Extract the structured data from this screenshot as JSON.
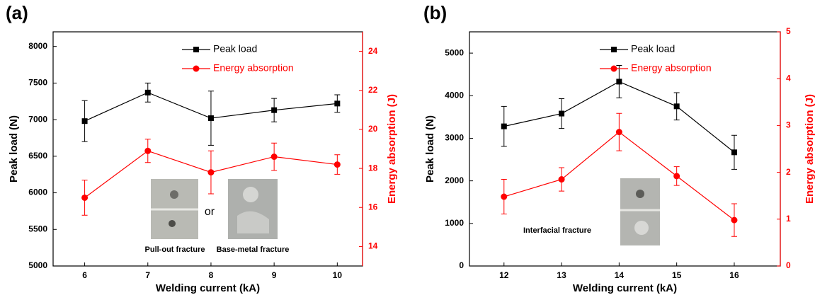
{
  "chart_data": [
    {
      "type": "line",
      "panel_label": "(a)",
      "xlabel": "Welding current (kA)",
      "ylabel": "Peak load (N)",
      "y2label": "Energy absorption (J)",
      "x": [
        6,
        7,
        8,
        9,
        10
      ],
      "xlim": [
        5.5,
        10.4
      ],
      "xticks": [
        6,
        7,
        8,
        9,
        10
      ],
      "ylim": [
        5000,
        8200
      ],
      "yticks": [
        5000,
        5500,
        6000,
        6500,
        7000,
        7500,
        8000
      ],
      "y2lim": [
        13,
        25
      ],
      "y2ticks": [
        14,
        16,
        18,
        20,
        22,
        24
      ],
      "y2color": "#ff0000",
      "legend": "upper right",
      "series": [
        {
          "name": "Peak load",
          "color": "#000000",
          "marker": "square",
          "values": [
            6980,
            7370,
            7020,
            7130,
            7220
          ],
          "errors": [
            280,
            130,
            370,
            160,
            120
          ]
        },
        {
          "name": "Energy absorption",
          "color": "#ff0000",
          "marker": "circle",
          "axis": "y2",
          "values": [
            16.5,
            18.9,
            17.8,
            18.6,
            18.2
          ],
          "errors": [
            0.9,
            0.6,
            1.1,
            0.7,
            0.5
          ]
        }
      ],
      "annotations": [
        "Pull-out fracture",
        "or",
        "Base-metal fracture"
      ]
    },
    {
      "type": "line",
      "panel_label": "(b)",
      "xlabel": "Welding current (kA)",
      "ylabel": "Peak load (N)",
      "y2label": "Energy absorption (J)",
      "x": [
        12,
        13,
        14,
        15,
        16
      ],
      "xlim": [
        11.4,
        16.8
      ],
      "xticks": [
        12,
        13,
        14,
        15,
        16
      ],
      "ylim": [
        0,
        5500
      ],
      "yticks": [
        0,
        1000,
        2000,
        3000,
        4000,
        5000
      ],
      "y2lim": [
        0,
        5
      ],
      "y2ticks": [
        0,
        1,
        2,
        3,
        4,
        5
      ],
      "y2color": "#ff0000",
      "legend": "upper right",
      "series": [
        {
          "name": "Peak load",
          "color": "#000000",
          "marker": "square",
          "values": [
            3280,
            3580,
            4330,
            3750,
            2670
          ],
          "errors": [
            470,
            350,
            380,
            320,
            400
          ]
        },
        {
          "name": "Energy absorption",
          "color": "#ff0000",
          "marker": "circle",
          "axis": "y2",
          "values": [
            1.48,
            1.85,
            2.86,
            1.92,
            0.98
          ],
          "errors": [
            0.37,
            0.25,
            0.4,
            0.2,
            0.35
          ]
        }
      ],
      "annotations": [
        "Interfacial fracture"
      ]
    }
  ]
}
